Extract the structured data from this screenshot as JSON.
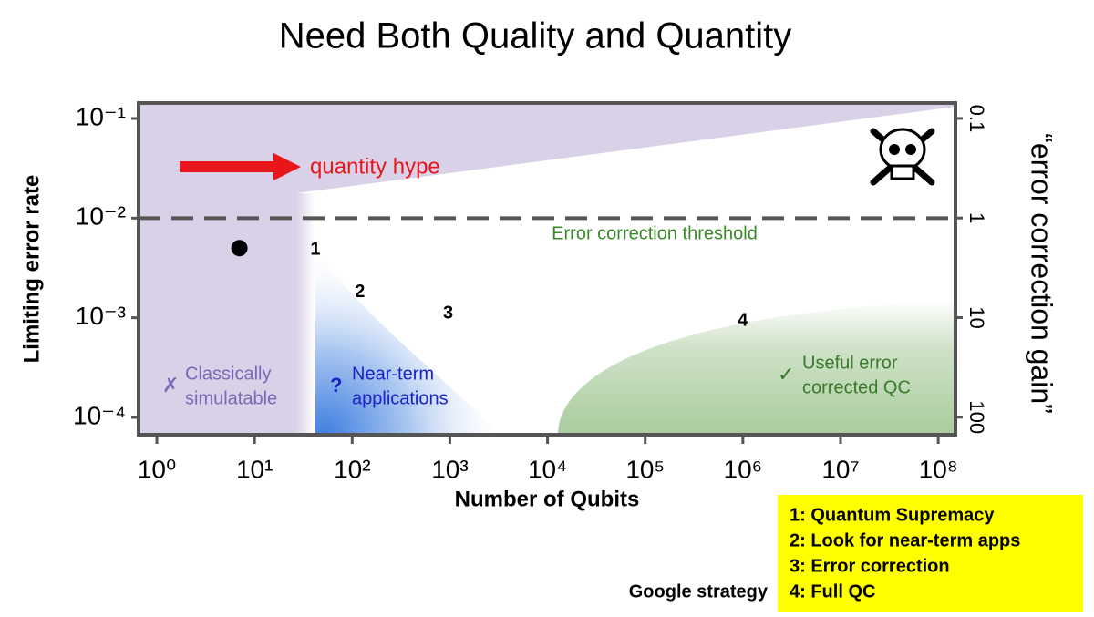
{
  "chart_data": {
    "type": "scatter",
    "title": "Need Both Quality and Quantity",
    "x_label": "Number of Qubits",
    "y_label": "Limiting error rate",
    "y2_label": "“error correction gain”",
    "xscale": "log",
    "yscale": "log",
    "xlim": [
      0.65,
      150000000
    ],
    "ylim": [
      6.7e-05,
      0.143
    ],
    "y2lim": [
      150,
      0.07
    ],
    "xticks": [
      {
        "value": 1,
        "label": "10⁰"
      },
      {
        "value": 10,
        "label": "10¹"
      },
      {
        "value": 100,
        "label": "10²"
      },
      {
        "value": 1000,
        "label": "10³"
      },
      {
        "value": 10000,
        "label": "10⁴"
      },
      {
        "value": 100000,
        "label": "10⁵"
      },
      {
        "value": 1000000,
        "label": "10⁶"
      },
      {
        "value": 10000000,
        "label": "10⁷"
      },
      {
        "value": 100000000,
        "label": "10⁸"
      }
    ],
    "yticks": [
      {
        "value": 0.1,
        "label": "10⁻¹"
      },
      {
        "value": 0.01,
        "label": "10⁻²"
      },
      {
        "value": 0.001,
        "label": "10⁻³"
      },
      {
        "value": 0.0001,
        "label": "10⁻⁴"
      }
    ],
    "y2ticks": [
      0.1,
      1,
      10,
      100
    ],
    "x": [
      7
    ],
    "values": [
      0.005
    ],
    "color": "#000000",
    "threshold": 0.01,
    "threshold_label": "Error correction threshold",
    "threshold_label_color": "#3a8a2a",
    "hype_label": "quantity hype",
    "hype_color": "#e8161b",
    "annotations": [
      {
        "text": "1",
        "x": 42,
        "y": 0.0048
      },
      {
        "text": "2",
        "x": 120,
        "y": 0.0018
      },
      {
        "text": "3",
        "x": 960,
        "y": 0.0011
      },
      {
        "text": "4",
        "x": 1000000,
        "y": 0.00093
      }
    ],
    "region_labels": [
      {
        "symbol": "✗",
        "lines": [
          "Classically",
          "simulatable"
        ],
        "color": "#7a68b8"
      },
      {
        "symbol": "?",
        "lines": [
          "Near-term",
          "applications"
        ],
        "color": "#1a22c8"
      },
      {
        "symbol": "✓",
        "lines": [
          "Useful error",
          "corrected QC"
        ],
        "color": "#3a7a2a"
      }
    ],
    "strategy_label": "Google strategy",
    "strategy": [
      "1: Quantum Supremacy",
      "2: Look for near-term apps",
      "3: Error correction",
      "4: Full QC"
    ]
  }
}
